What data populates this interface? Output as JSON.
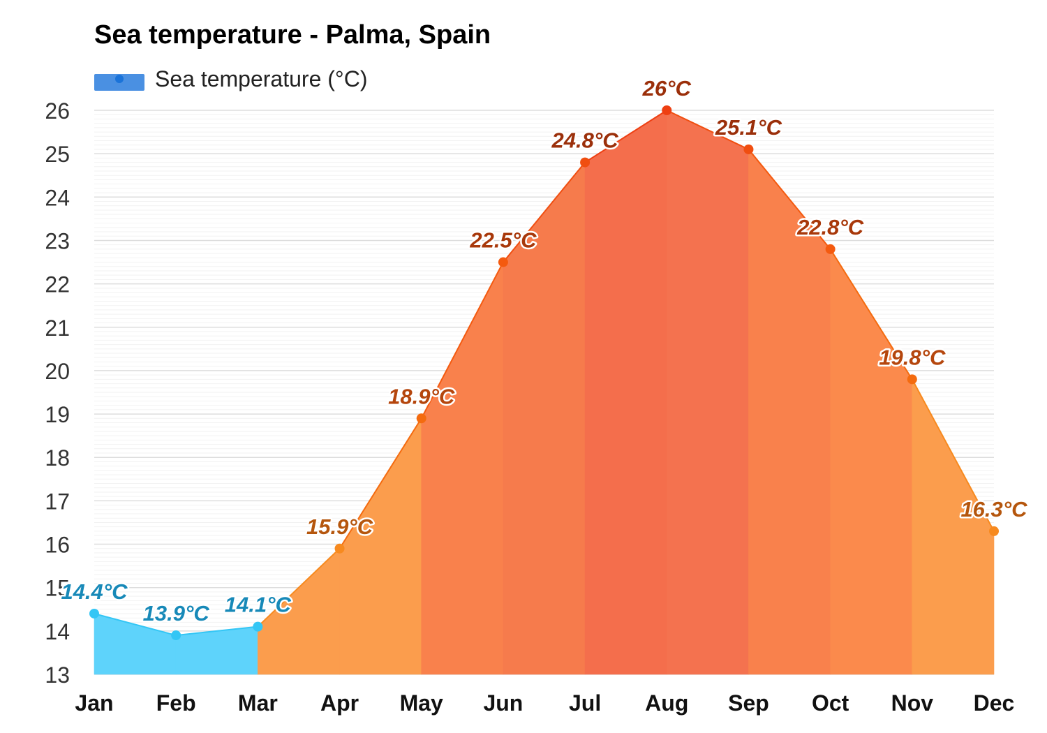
{
  "chart_data": {
    "type": "area",
    "title": "Sea temperature - Palma, Spain",
    "categories": [
      "Jan",
      "Feb",
      "Mar",
      "Apr",
      "May",
      "Jun",
      "Jul",
      "Aug",
      "Sep",
      "Oct",
      "Nov",
      "Dec"
    ],
    "series": [
      {
        "name": "Sea temperature (°C)",
        "values": [
          14.4,
          13.9,
          14.1,
          15.9,
          18.9,
          22.5,
          24.8,
          26,
          25.1,
          22.8,
          19.8,
          16.3
        ],
        "labels": [
          "14.4°C",
          "13.9°C",
          "14.1°C",
          "15.9°C",
          "18.9°C",
          "22.5°C",
          "24.8°C",
          "26°C",
          "25.1°C",
          "22.8°C",
          "19.8°C",
          "16.3°C"
        ]
      }
    ],
    "yticks": [
      "13",
      "14",
      "15",
      "16",
      "17",
      "18",
      "19",
      "20",
      "21",
      "22",
      "23",
      "24",
      "25",
      "26"
    ],
    "ylim": [
      13,
      26
    ],
    "grid": true,
    "legend": "top-left",
    "legend_swatch_color": "#4a90e2",
    "segment_fills": [
      "#5ed3fb",
      "#5ed3fb",
      "#fb9d4d",
      "#fb9d4d",
      "#f9814c",
      "#f67b4c",
      "#f46e4c",
      "#f4724f",
      "#f9814c",
      "#fb8a4c",
      "#fb9d4d"
    ],
    "point_colors": [
      "#33c6f5",
      "#33c6f5",
      "#33c6f5",
      "#f78a1f",
      "#f46b0f",
      "#f45a0f",
      "#f04e10",
      "#ee3f12",
      "#f04e10",
      "#f45a0f",
      "#f46b0f",
      "#f78a1f"
    ],
    "label_colors": [
      "#1789b8",
      "#1789b8",
      "#1789b8",
      "#b5560d",
      "#b5460d",
      "#a8380a",
      "#9b2f0a",
      "#9b2f0a",
      "#9b2f0a",
      "#a8380a",
      "#b5460d",
      "#b5560d"
    ]
  }
}
